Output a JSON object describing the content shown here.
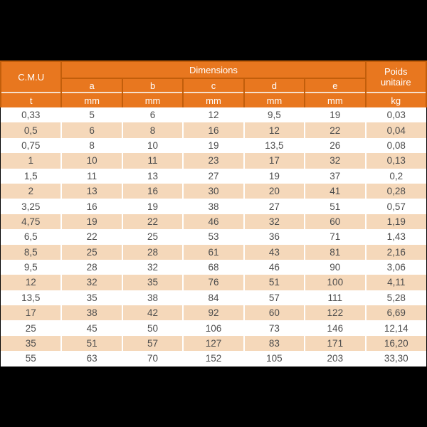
{
  "window": {
    "background": "#000000"
  },
  "table": {
    "cmu_label": "C.M.U",
    "dimensions_label": "Dimensions",
    "poids_label": "Poids unitaire",
    "dim_cols": [
      "a",
      "b",
      "c",
      "d",
      "e"
    ],
    "units": [
      "t",
      "mm",
      "mm",
      "mm",
      "mm",
      "mm",
      "kg"
    ],
    "rows": [
      [
        "0,33",
        "5",
        "6",
        "12",
        "9,5",
        "19",
        "0,03"
      ],
      [
        "0,5",
        "6",
        "8",
        "16",
        "12",
        "22",
        "0,04"
      ],
      [
        "0,75",
        "8",
        "10",
        "19",
        "13,5",
        "26",
        "0,08"
      ],
      [
        "1",
        "10",
        "11",
        "23",
        "17",
        "32",
        "0,13"
      ],
      [
        "1,5",
        "11",
        "13",
        "27",
        "19",
        "37",
        "0,2"
      ],
      [
        "2",
        "13",
        "16",
        "30",
        "20",
        "41",
        "0,28"
      ],
      [
        "3,25",
        "16",
        "19",
        "38",
        "27",
        "51",
        "0,57"
      ],
      [
        "4,75",
        "19",
        "22",
        "46",
        "32",
        "60",
        "1,19"
      ],
      [
        "6,5",
        "22",
        "25",
        "53",
        "36",
        "71",
        "1,43"
      ],
      [
        "8,5",
        "25",
        "28",
        "61",
        "43",
        "81",
        "2,16"
      ],
      [
        "9,5",
        "28",
        "32",
        "68",
        "46",
        "90",
        "3,06"
      ],
      [
        "12",
        "32",
        "35",
        "76",
        "51",
        "100",
        "4,11"
      ],
      [
        "13,5",
        "35",
        "38",
        "84",
        "57",
        "111",
        "5,28"
      ],
      [
        "17",
        "38",
        "42",
        "92",
        "60",
        "122",
        "6,69"
      ],
      [
        "25",
        "45",
        "50",
        "106",
        "73",
        "146",
        "12,14"
      ],
      [
        "35",
        "51",
        "57",
        "127",
        "83",
        "171",
        "16,20"
      ],
      [
        "55",
        "63",
        "70",
        "152",
        "105",
        "203",
        "33,30"
      ]
    ]
  },
  "colors": {
    "orange": "#E8771F",
    "border_dark": "#C25E0B",
    "stripe": "#F5D8BA",
    "light_sep": "#F6DFCA",
    "data_text": "#4C4C4C",
    "header_text": "#FFFFFF",
    "background": "#000000"
  }
}
